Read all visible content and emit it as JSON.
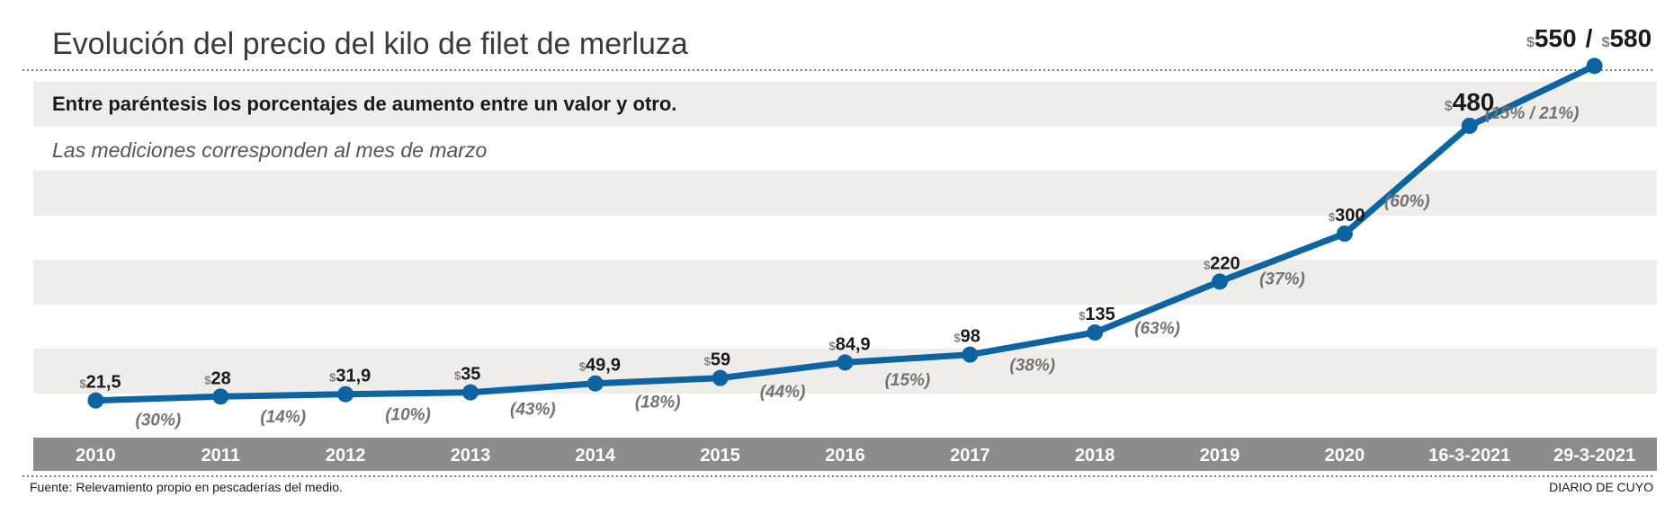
{
  "chart_data": {
    "type": "line",
    "title": "Evolución del precio del kilo de filet de merluza",
    "subtitle": "Entre paréntesis los porcentajes de aumento entre un valor y otro.",
    "note": "Las mediciones corresponden al mes de marzo",
    "currency_symbol": "$",
    "categories": [
      "2010",
      "2011",
      "2012",
      "2013",
      "2014",
      "2015",
      "2016",
      "2017",
      "2018",
      "2019",
      "2020",
      "16-3-2021",
      "29-3-2021"
    ],
    "values": [
      21.5,
      28,
      31.9,
      35,
      49.9,
      59,
      84.9,
      98,
      135,
      220,
      300,
      480,
      580
    ],
    "value_labels": [
      "21,5",
      "28",
      "31,9",
      "35",
      "49,9",
      "59",
      "84,9",
      "98",
      "135",
      "220",
      "300",
      "480",
      "580"
    ],
    "last_point_extra_value": {
      "value": 550,
      "label": "550"
    },
    "separator": "/",
    "percent_changes": [
      "(30%)",
      "(14%)",
      "(10%)",
      "(43%)",
      "(18%)",
      "(44%)",
      "(15%)",
      "(38%)",
      "(63%)",
      "(37%)",
      "(60%)",
      "(15% / 21%)"
    ],
    "ylim": [
      0,
      600
    ],
    "grid": "horizontal bands",
    "line_color": "#0d64a2",
    "band_color": "#eeede9",
    "axis_bar_color": "#8c8c8c"
  },
  "footer": {
    "source": "Fuente: Relevamiento propio en pescaderías del medio.",
    "brand": "DIARIO DE CUYO"
  }
}
